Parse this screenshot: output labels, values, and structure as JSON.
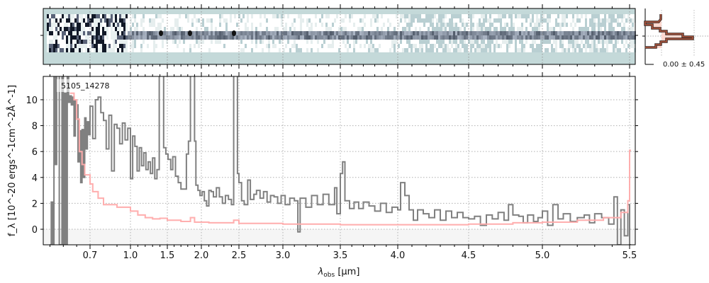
{
  "chart_data": [
    {
      "type": "line",
      "panel": "main-spectrum",
      "annotation": "5105_14278",
      "xlabel": "λ_obs [μm]",
      "xlabel_parts": {
        "main": "λ",
        "sub": "obs",
        "unit": " [μm]"
      },
      "ylabel": "f_λ [10^-20 ergs^-1cm^-2Å^-1]",
      "ylabel_parts": {
        "f": "f",
        "sub": "λ",
        "a": " [10",
        "e1": "−20",
        "b": " ergs",
        "e2": "−1",
        "c": "cm",
        "e3": "−2",
        "d": "Å",
        "e4": "−1",
        "end": "]"
      },
      "xlim": [
        0.35,
        5.53
      ],
      "ylim": [
        -1.2,
        11.8
      ],
      "x_scale": "nonlinear (pixel-based)",
      "x_ticks": [
        0.7,
        1.0,
        1.5,
        2.0,
        2.5,
        3.0,
        3.5,
        4.0,
        4.5,
        5.0,
        5.5
      ],
      "x_tick_labels": [
        "0.7",
        "1.0",
        "1.5",
        "2.0",
        "2.5",
        "3.0",
        "3.5",
        "4.0",
        "4.5",
        "5.0",
        "5.5"
      ],
      "y_ticks": [
        0,
        2,
        4,
        6,
        8,
        10
      ],
      "y_tick_labels": [
        "0",
        "2",
        "4",
        "6",
        "8",
        "10"
      ],
      "grid": true,
      "colors": {
        "data": "#808080",
        "model": "#ffbbbb",
        "negative_band": "#f5f5f5"
      },
      "series": [
        {
          "role": "data",
          "style": "steps",
          "x": [
            0.4,
            0.41,
            0.42,
            0.43,
            0.44,
            0.45,
            0.47,
            0.49,
            0.5,
            0.51,
            0.52,
            0.53,
            0.54,
            0.55,
            0.56,
            0.57,
            0.58,
            0.59,
            0.6,
            0.61,
            0.62,
            0.63,
            0.64,
            0.65,
            0.66,
            0.67,
            0.68,
            0.69,
            0.7,
            0.72,
            0.74,
            0.76,
            0.78,
            0.8,
            0.82,
            0.84,
            0.86,
            0.88,
            0.9,
            0.92,
            0.94,
            0.96,
            0.98,
            1.0,
            1.03,
            1.06,
            1.09,
            1.12,
            1.15,
            1.18,
            1.21,
            1.24,
            1.27,
            1.3,
            1.33,
            1.36,
            1.39,
            1.42,
            1.45,
            1.48,
            1.51,
            1.55,
            1.58,
            1.62,
            1.66,
            1.7,
            1.74,
            1.78,
            1.81,
            1.84,
            1.87,
            1.9,
            1.92,
            1.95,
            1.98,
            2.01,
            2.04,
            2.07,
            2.1,
            2.13,
            2.16,
            2.2,
            2.24,
            2.28,
            2.32,
            2.36,
            2.4,
            2.43,
            2.46,
            2.48,
            2.5,
            2.53,
            2.56,
            2.6,
            2.63,
            2.67,
            2.7,
            2.74,
            2.78,
            2.82,
            2.86,
            2.9,
            2.94,
            2.98,
            3.02,
            3.06,
            3.1,
            3.13,
            3.15,
            3.2,
            3.25,
            3.3,
            3.35,
            3.4,
            3.45,
            3.47,
            3.5,
            3.52,
            3.54,
            3.58,
            3.62,
            3.66,
            3.7,
            3.75,
            3.8,
            3.85,
            3.9,
            3.95,
            4.0,
            4.02,
            4.05,
            4.08,
            4.11,
            4.14,
            4.18,
            4.22,
            4.26,
            4.3,
            4.34,
            4.38,
            4.42,
            4.46,
            4.5,
            4.54,
            4.58,
            4.62,
            4.66,
            4.7,
            4.74,
            4.77,
            4.8,
            4.84,
            4.87,
            4.9,
            4.94,
            4.97,
            5.0,
            5.03,
            5.06,
            5.09,
            5.12,
            5.16,
            5.2,
            5.24,
            5.27,
            5.3,
            5.34,
            5.38,
            5.41,
            5.43,
            5.45,
            5.47,
            5.49,
            5.5
          ],
          "y": [
            -1.2,
            2.1,
            -1.2,
            12,
            5,
            12,
            -1.2,
            12,
            -1.2,
            10.5,
            -1.2,
            12,
            9.8,
            10.3,
            9.6,
            10.2,
            7.2,
            9.9,
            9.6,
            5.2,
            7.6,
            3.6,
            7.7,
            4.0,
            8.6,
            6.2,
            8.3,
            7.3,
            9.5,
            7.0,
            10.0,
            10.2,
            9.0,
            8.4,
            6.2,
            8.8,
            4.5,
            8.1,
            7.8,
            6.6,
            8.2,
            6.9,
            7.8,
            3.9,
            7.2,
            6.4,
            4.5,
            6.3,
            4.9,
            5.9,
            4.6,
            5.2,
            4.3,
            5.5,
            3.9,
            4.6,
            12,
            12,
            6.3,
            5.8,
            5.4,
            4.6,
            5.6,
            4.1,
            3.6,
            3.1,
            3.1,
            5.8,
            6.8,
            12,
            12,
            6.8,
            3.4,
            3.0,
            2.6,
            2.9,
            2.2,
            1.8,
            3.0,
            2.9,
            2.5,
            3.2,
            2.5,
            2.0,
            2.6,
            2.3,
            1.9,
            12,
            12,
            4.3,
            3.6,
            2.2,
            1.9,
            3.8,
            2.3,
            2.7,
            3.0,
            2.4,
            2.9,
            2.1,
            2.6,
            2.5,
            2.0,
            2.6,
            1.9,
            2.4,
            2.2,
            -0.2,
            2.4,
            1.7,
            2.6,
            1.9,
            2.7,
            1.9,
            3.2,
            1.2,
            4.3,
            5.2,
            2.2,
            1.6,
            2.1,
            1.6,
            2.1,
            1.8,
            1.4,
            2.0,
            1.3,
            1.7,
            1.5,
            3.6,
            2.6,
            1.5,
            0.7,
            1.5,
            1.2,
            0.9,
            1.5,
            0.7,
            1.4,
            0.9,
            1.3,
            0.9,
            0.8,
            1.0,
            0.3,
            1.1,
            0.8,
            1.3,
            0.7,
            1.9,
            1.1,
            1.0,
            0.5,
            1.1,
            0.6,
            0.9,
            1.4,
            0.3,
            1.9,
            0.8,
            1.2,
            0.6,
            0.9,
            1.1,
            0.5,
            1.2,
            0.9,
            0.4,
            2.5,
            -1.2,
            1.5,
            -0.5,
            1.9,
            -1.2
          ]
        },
        {
          "role": "model",
          "style": "steps",
          "x": [
            0.55,
            0.58,
            0.6,
            0.62,
            0.64,
            0.66,
            0.7,
            0.72,
            0.76,
            0.8,
            0.85,
            0.9,
            1.0,
            1.1,
            1.2,
            1.3,
            1.4,
            1.5,
            1.7,
            1.84,
            1.9,
            2.1,
            2.43,
            2.5,
            3.0,
            3.5,
            4.0,
            4.5,
            4.8,
            5.0,
            5.2,
            5.35,
            5.45,
            5.49,
            5.5
          ],
          "y": [
            10.5,
            10.0,
            8.5,
            6.0,
            5.0,
            4.2,
            3.5,
            2.9,
            2.4,
            1.9,
            1.9,
            1.7,
            1.4,
            1.1,
            0.9,
            0.8,
            0.85,
            0.7,
            0.6,
            0.9,
            0.55,
            0.5,
            0.7,
            0.45,
            0.4,
            0.35,
            0.35,
            0.4,
            0.5,
            0.55,
            0.7,
            0.9,
            1.3,
            2.2,
            6.1
          ]
        }
      ]
    },
    {
      "type": "heatmap",
      "panel": "2d-spectrum",
      "colormap": [
        "#c4d9d9",
        "#ffffff",
        "#1a1a2e"
      ],
      "background": "#c4d9d9"
    },
    {
      "type": "line",
      "panel": "cross-dispersion-profile",
      "annotation": "0.00 ± 0.45",
      "colors": {
        "line": "#5a2a1f",
        "fill": "#ffd8cf"
      }
    }
  ]
}
